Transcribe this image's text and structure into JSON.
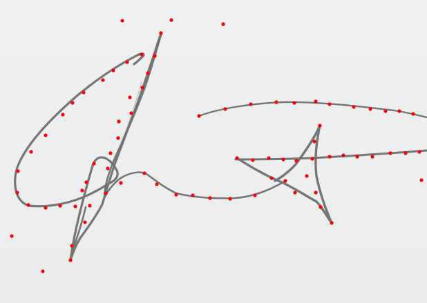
{
  "image": {
    "kind": "signature-with-point-markers",
    "paper_color": "#eeeeee",
    "ink_color": "#6f6f6f",
    "marker_color": "#ff0000"
  }
}
